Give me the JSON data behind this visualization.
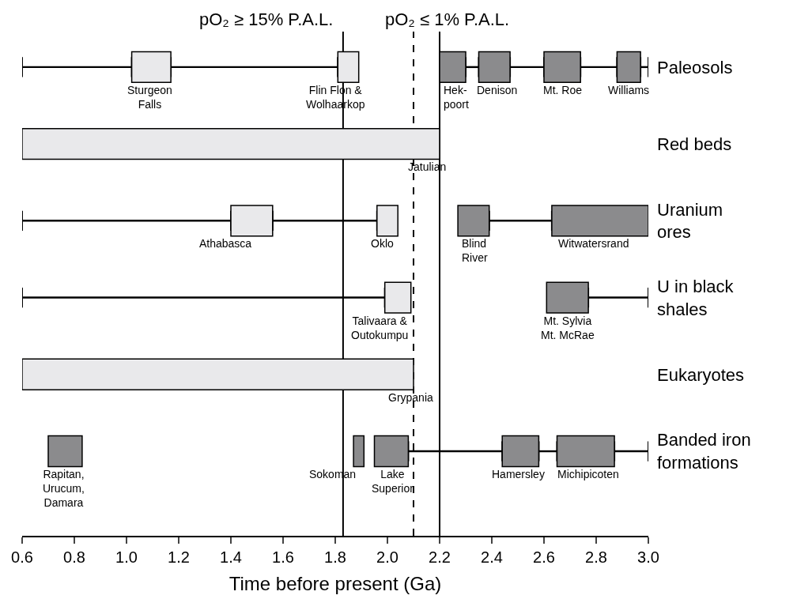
{
  "chart_data": {
    "type": "bar",
    "orientation": "horizontal",
    "grid": false,
    "xlabel": "Time before present (Ga)",
    "categories": [
      "Paleosols",
      "Red beds",
      "Uranium\nores",
      "U in black\nshales",
      "Eukaryotes",
      "Banded iron\nformations"
    ],
    "xlim": [
      0.6,
      3.0
    ],
    "xticks": [
      0.6,
      0.8,
      {
        "value": 1.0,
        "label": "1.0"
      },
      1.2,
      1.4,
      1.6,
      1.8,
      {
        "value": 2.0,
        "label": "2.0"
      },
      2.2,
      2.4,
      2.6,
      2.8,
      {
        "value": 3.0,
        "label": "3.0"
      }
    ],
    "series": [
      {
        "line_style": "solid",
        "color": "#000000",
        "base": [
          0.6,
          null,
          0.6,
          0.6,
          null,
          2.08
        ],
        "values": [
          0.42,
          null,
          0.8,
          1.39,
          null,
          0.36
        ]
      },
      {
        "line_style": "solid",
        "color": "#000000",
        "base": [
          1.17,
          null,
          1.56,
          2.77,
          null,
          2.58
        ],
        "values": [
          0.64,
          null,
          0.4,
          0.23,
          null,
          0.07
        ]
      },
      {
        "line_style": "solid",
        "color": "#000000",
        "base": [
          2.3,
          null,
          2.39,
          null,
          null,
          2.87
        ],
        "values": [
          0.05,
          null,
          0.24,
          null,
          null,
          0.13
        ]
      },
      {
        "line_style": "solid",
        "color": "#000000",
        "base": [
          2.47,
          null,
          null,
          null,
          null,
          null
        ],
        "values": [
          0.13,
          null,
          null,
          null,
          null,
          null
        ]
      },
      {
        "line_style": "solid",
        "color": "#000000",
        "base": [
          2.74,
          null,
          null,
          null,
          null,
          null
        ],
        "values": [
          0.14,
          null,
          null,
          null,
          null,
          null
        ]
      },
      {
        "line_style": "solid",
        "color": "#000000",
        "base": [
          2.97,
          null,
          null,
          null,
          null,
          null
        ],
        "values": [
          0.03,
          null,
          null,
          null,
          null,
          null
        ]
      },
      {
        "color": "#e9e9eb",
        "base": [
          1.02,
          0.6,
          1.4,
          1.99,
          0.6,
          null
        ],
        "values": [
          0.15,
          1.6,
          0.16,
          0.1,
          1.5,
          null
        ]
      },
      {
        "color": "#e9e9eb",
        "base": [
          1.81,
          null,
          1.96,
          null,
          null,
          null
        ],
        "values": [
          0.08,
          null,
          0.08,
          null,
          null,
          null
        ]
      },
      {
        "color": "#8b8b8d",
        "base": [
          2.2,
          null,
          2.27,
          2.61,
          null,
          0.7
        ],
        "values": [
          0.1,
          null,
          0.12,
          0.16,
          null,
          0.13
        ]
      },
      {
        "color": "#8b8b8d",
        "base": [
          2.35,
          null,
          2.63,
          null,
          null,
          1.87
        ],
        "values": [
          0.12,
          null,
          0.37,
          null,
          null,
          0.04
        ]
      },
      {
        "color": "#8b8b8d",
        "base": [
          2.6,
          null,
          null,
          null,
          null,
          1.95
        ],
        "values": [
          0.14,
          null,
          null,
          null,
          null,
          0.13
        ]
      },
      {
        "color": "#8b8b8d",
        "base": [
          2.88,
          null,
          null,
          null,
          null,
          2.44
        ],
        "values": [
          0.09,
          null,
          null,
          null,
          null,
          0.14
        ]
      },
      {
        "color": "#8b8b8d",
        "base": [
          null,
          null,
          null,
          null,
          null,
          2.65
        ],
        "values": [
          null,
          null,
          null,
          null,
          null,
          0.22
        ]
      }
    ],
    "ref_lines": [
      {
        "axis": "x",
        "value": 1.83,
        "color": "#000000",
        "line_style": "solid"
      },
      {
        "axis": "x",
        "value": 2.1,
        "color": "#000000",
        "line_style": "dashed"
      },
      {
        "axis": "x",
        "value": 2.2,
        "color": "#000000",
        "line_style": "solid"
      }
    ],
    "annotations": [
      "pO₂ ≥ 15% P.A.L.",
      "pO₂ ≤ 1% P.A.L.",
      {
        "text": "Sturgeon\nFalls",
        "x": 1.02,
        "y": "Paleosols"
      },
      {
        "text": "Flin Flon &\nWolhaarkop",
        "x": 1.81,
        "y": "Paleosols"
      },
      {
        "text": "Hek-\npoort",
        "x": 2.2,
        "y": "Paleosols"
      },
      {
        "text": "Denison",
        "x": 2.35,
        "y": "Paleosols"
      },
      {
        "text": "Mt. Roe",
        "x": 2.6,
        "y": "Paleosols"
      },
      {
        "text": "Williams",
        "x": 2.88,
        "y": "Paleosols"
      },
      {
        "text": "Jatulian",
        "x": 2.2,
        "y": "Red beds"
      },
      {
        "text": "Athabasca",
        "x": 1.4,
        "y": "Uranium\nores"
      },
      {
        "text": "Oklo",
        "x": 1.96,
        "y": "Uranium\nores"
      },
      {
        "text": "Blind\nRiver",
        "x": 2.27,
        "y": "Uranium\nores"
      },
      {
        "text": "Witwatersrand",
        "x": 2.63,
        "y": "Uranium\nores"
      },
      {
        "text": "Talivaara &\nOutokumpu",
        "x": 1.99,
        "y": "U in black\nshales"
      },
      {
        "text": "Mt. Sylvia\nMt. McRae",
        "x": 2.61,
        "y": "U in black\nshales"
      },
      {
        "text": "Grypania",
        "x": 2.1,
        "y": "Eukaryotes"
      },
      {
        "text": "Rapitan,\nUrucum,\nDamara",
        "x": 0.7,
        "y": "Banded iron\nformations"
      },
      {
        "text": "Sokoman",
        "x": 1.87,
        "y": "Banded iron\nformations"
      },
      {
        "text": "Lake\nSuperior",
        "x": 1.95,
        "y": "Banded iron\nformations"
      },
      {
        "text": "Hamersley",
        "x": 2.44,
        "y": "Banded iron\nformations"
      },
      {
        "text": "Michipicoten",
        "x": 2.65,
        "y": "Banded iron\nformations"
      }
    ]
  }
}
